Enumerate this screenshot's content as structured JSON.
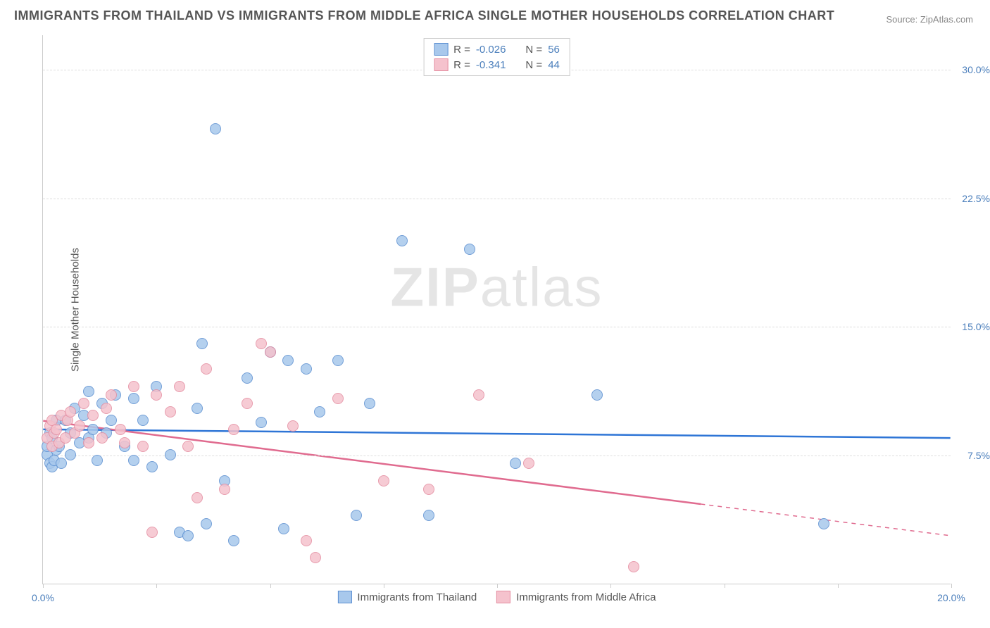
{
  "title": "IMMIGRANTS FROM THAILAND VS IMMIGRANTS FROM MIDDLE AFRICA SINGLE MOTHER HOUSEHOLDS CORRELATION CHART",
  "source": "Source: ZipAtlas.com",
  "ylabel": "Single Mother Households",
  "watermark": "ZIPatlas",
  "chart": {
    "type": "scatter",
    "xlim": [
      0,
      20
    ],
    "ylim": [
      0,
      32
    ],
    "xticks": [
      0,
      2.5,
      5,
      7.5,
      10,
      12.5,
      15,
      17.5,
      20
    ],
    "xtick_labels": {
      "0": "0.0%",
      "20": "20.0%"
    },
    "yticks": [
      7.5,
      15,
      22.5,
      30
    ],
    "ytick_labels": [
      "7.5%",
      "15.0%",
      "22.5%",
      "30.0%"
    ],
    "background_color": "#ffffff",
    "grid_color": "#dddddd",
    "axis_color": "#cccccc",
    "tick_label_color": "#4a7ebb",
    "marker_radius": 8,
    "marker_border_width": 1.2,
    "marker_fill_opacity": 0.35
  },
  "series": [
    {
      "name": "Immigrants from Thailand",
      "color_fill": "#a8c8ec",
      "color_border": "#5b8fd1",
      "trend_color": "#2e75d6",
      "trend_width": 2.5,
      "trend_dash_after_x": null,
      "r": "-0.026",
      "n": "56",
      "trend": {
        "x1": 0,
        "y1": 9.0,
        "x2": 20,
        "y2": 8.5
      },
      "points": [
        [
          0.1,
          7.5
        ],
        [
          0.1,
          8.0
        ],
        [
          0.15,
          7.0
        ],
        [
          0.15,
          8.8
        ],
        [
          0.2,
          6.8
        ],
        [
          0.2,
          8.5
        ],
        [
          0.25,
          7.2
        ],
        [
          0.3,
          7.8
        ],
        [
          0.3,
          9.5
        ],
        [
          0.35,
          8.0
        ],
        [
          0.4,
          7.0
        ],
        [
          0.5,
          9.5
        ],
        [
          0.6,
          7.5
        ],
        [
          0.6,
          8.8
        ],
        [
          0.7,
          10.2
        ],
        [
          0.8,
          8.2
        ],
        [
          0.9,
          9.8
        ],
        [
          1.0,
          8.5
        ],
        [
          1.0,
          11.2
        ],
        [
          1.1,
          9.0
        ],
        [
          1.2,
          7.2
        ],
        [
          1.3,
          10.5
        ],
        [
          1.4,
          8.8
        ],
        [
          1.5,
          9.5
        ],
        [
          1.6,
          11.0
        ],
        [
          1.8,
          8.0
        ],
        [
          2.0,
          7.2
        ],
        [
          2.0,
          10.8
        ],
        [
          2.2,
          9.5
        ],
        [
          2.4,
          6.8
        ],
        [
          2.5,
          11.5
        ],
        [
          2.8,
          7.5
        ],
        [
          3.0,
          3.0
        ],
        [
          3.2,
          2.8
        ],
        [
          3.4,
          10.2
        ],
        [
          3.5,
          14.0
        ],
        [
          3.6,
          3.5
        ],
        [
          3.8,
          26.5
        ],
        [
          4.0,
          6.0
        ],
        [
          4.2,
          2.5
        ],
        [
          4.5,
          12.0
        ],
        [
          4.8,
          9.4
        ],
        [
          5.0,
          13.5
        ],
        [
          5.3,
          3.2
        ],
        [
          5.4,
          13.0
        ],
        [
          5.8,
          12.5
        ],
        [
          6.1,
          10.0
        ],
        [
          6.5,
          13.0
        ],
        [
          6.9,
          4.0
        ],
        [
          7.2,
          10.5
        ],
        [
          7.9,
          20.0
        ],
        [
          8.5,
          4.0
        ],
        [
          9.4,
          19.5
        ],
        [
          10.4,
          7.0
        ],
        [
          12.2,
          11.0
        ],
        [
          17.2,
          3.5
        ]
      ]
    },
    {
      "name": "Immigrants from Middle Africa",
      "color_fill": "#f5c2cd",
      "color_border": "#e48da0",
      "trend_color": "#e06b8f",
      "trend_width": 2.5,
      "trend_dash_after_x": 14.5,
      "r": "-0.341",
      "n": "44",
      "trend": {
        "x1": 0,
        "y1": 9.5,
        "x2": 20,
        "y2": 2.8
      },
      "points": [
        [
          0.1,
          8.5
        ],
        [
          0.15,
          9.2
        ],
        [
          0.2,
          8.0
        ],
        [
          0.2,
          9.5
        ],
        [
          0.25,
          8.8
        ],
        [
          0.3,
          9.0
        ],
        [
          0.35,
          8.2
        ],
        [
          0.4,
          9.8
        ],
        [
          0.5,
          8.5
        ],
        [
          0.55,
          9.5
        ],
        [
          0.6,
          10.0
        ],
        [
          0.7,
          8.8
        ],
        [
          0.8,
          9.2
        ],
        [
          0.9,
          10.5
        ],
        [
          1.0,
          8.2
        ],
        [
          1.1,
          9.8
        ],
        [
          1.3,
          8.5
        ],
        [
          1.4,
          10.2
        ],
        [
          1.5,
          11.0
        ],
        [
          1.7,
          9.0
        ],
        [
          1.8,
          8.2
        ],
        [
          2.0,
          11.5
        ],
        [
          2.2,
          8.0
        ],
        [
          2.4,
          3.0
        ],
        [
          2.5,
          11.0
        ],
        [
          2.8,
          10.0
        ],
        [
          3.0,
          11.5
        ],
        [
          3.2,
          8.0
        ],
        [
          3.4,
          5.0
        ],
        [
          3.6,
          12.5
        ],
        [
          4.0,
          5.5
        ],
        [
          4.2,
          9.0
        ],
        [
          4.5,
          10.5
        ],
        [
          4.8,
          14.0
        ],
        [
          5.0,
          13.5
        ],
        [
          5.5,
          9.2
        ],
        [
          5.8,
          2.5
        ],
        [
          6.0,
          1.5
        ],
        [
          6.5,
          10.8
        ],
        [
          7.5,
          6.0
        ],
        [
          8.5,
          5.5
        ],
        [
          9.6,
          11.0
        ],
        [
          10.7,
          7.0
        ],
        [
          13.0,
          1.0
        ]
      ]
    }
  ],
  "legend_top": [
    {
      "swatch_fill": "#a8c8ec",
      "swatch_border": "#5b8fd1",
      "r_label": "R =",
      "r_val": "-0.026",
      "n_label": "N =",
      "n_val": "56"
    },
    {
      "swatch_fill": "#f5c2cd",
      "swatch_border": "#e48da0",
      "r_label": "R =",
      "r_val": "-0.341",
      "n_label": "N =",
      "n_val": "44"
    }
  ],
  "legend_bottom": [
    {
      "swatch_fill": "#a8c8ec",
      "swatch_border": "#5b8fd1",
      "label": "Immigrants from Thailand"
    },
    {
      "swatch_fill": "#f5c2cd",
      "swatch_border": "#e48da0",
      "label": "Immigrants from Middle Africa"
    }
  ]
}
